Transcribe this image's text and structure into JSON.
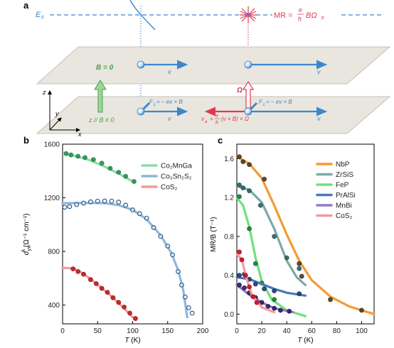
{
  "panel_a": {
    "letter": "a",
    "fermi_label": "E",
    "fermi_sub": "F",
    "mr_label": "MR =",
    "mr_frac_num": "e",
    "mr_frac_den": "ħ",
    "mr_tail": "BΩ",
    "mr_tail_sub": "F",
    "plane_top_field": "B = 0",
    "plane_bottom_field": "z // B ≠ 0",
    "velocity_label": "v",
    "omega_label": "Ω",
    "force_label": "F = − ev × B",
    "force_sub": "L",
    "va_label": "v",
    "va_sub": "a",
    "va_rest": "= (v × B) × Ω",
    "va_frac_num": "e",
    "va_frac_den": "ħ",
    "axis_z": "z",
    "axis_y": "y",
    "axis_x": "x",
    "colors": {
      "blue": "#3d86cf",
      "red": "#e03a4e",
      "green": "#4aa04a",
      "plane": "#e8e6de"
    }
  },
  "chart_data": [
    {
      "panel": "b",
      "type": "line",
      "xlabel": "T (K)",
      "ylabel": "σ",
      "ylabel_sup": "A",
      "ylabel_sub": "yx",
      "ylabel_units": "(Ω⁻¹ cm⁻¹)",
      "xlim": [
        0,
        200
      ],
      "ylim": [
        260,
        1600
      ],
      "xticks": [
        0,
        50,
        100,
        150,
        200
      ],
      "yticks": [
        400,
        800,
        1200,
        1600
      ],
      "legend_position": "top-right",
      "series": [
        {
          "name": "Co₂MnGa",
          "color": "#8edca6",
          "marker_color": "#2e8b57",
          "line": [
            [
              5,
              1525
            ],
            [
              20,
              1510
            ],
            [
              40,
              1478
            ],
            [
              60,
              1432
            ],
            [
              80,
              1380
            ],
            [
              100,
              1322
            ]
          ],
          "points": [
            [
              5,
              1530
            ],
            [
              12,
              1520
            ],
            [
              22,
              1510
            ],
            [
              32,
              1500
            ],
            [
              44,
              1485
            ],
            [
              56,
              1458
            ],
            [
              68,
              1420
            ],
            [
              80,
              1390
            ],
            [
              90,
              1360
            ],
            [
              102,
              1322
            ]
          ]
        },
        {
          "name": "Co₃Sn₂S₂",
          "color": "#8fb7db",
          "marker_color": "#2b5c8a",
          "line": [
            [
              0,
              1160
            ],
            [
              30,
              1162
            ],
            [
              60,
              1160
            ],
            [
              80,
              1145
            ],
            [
              100,
              1110
            ],
            [
              120,
              1040
            ],
            [
              140,
              920
            ],
            [
              155,
              790
            ],
            [
              165,
              660
            ],
            [
              172,
              520
            ],
            [
              178,
              310
            ]
          ],
          "points": [
            [
              3,
              1130
            ],
            [
              10,
              1135
            ],
            [
              20,
              1150
            ],
            [
              30,
              1160
            ],
            [
              40,
              1170
            ],
            [
              50,
              1175
            ],
            [
              60,
              1176
            ],
            [
              70,
              1175
            ],
            [
              80,
              1168
            ],
            [
              90,
              1145
            ],
            [
              100,
              1110
            ],
            [
              110,
              1082
            ],
            [
              120,
              1048
            ],
            [
              130,
              978
            ],
            [
              140,
              912
            ],
            [
              150,
              840
            ],
            [
              157,
              775
            ],
            [
              165,
              650
            ],
            [
              170,
              550
            ],
            [
              175,
              460
            ],
            [
              180,
              380
            ],
            [
              185,
              340
            ]
          ],
          "marker_fill": "none"
        },
        {
          "name": "CoS₂",
          "color": "#f39a9a",
          "marker_color": "#b22222",
          "line": [
            [
              0,
              678
            ],
            [
              15,
              674
            ],
            [
              25,
              650
            ],
            [
              40,
              595
            ],
            [
              55,
              530
            ],
            [
              70,
              465
            ],
            [
              85,
              390
            ],
            [
              100,
              310
            ],
            [
              105,
              290
            ]
          ],
          "points": [
            [
              15,
              670
            ],
            [
              22,
              650
            ],
            [
              30,
              630
            ],
            [
              40,
              590
            ],
            [
              48,
              560
            ],
            [
              56,
              525
            ],
            [
              64,
              495
            ],
            [
              72,
              455
            ],
            [
              80,
              420
            ],
            [
              88,
              385
            ],
            [
              96,
              340
            ],
            [
              104,
              300
            ]
          ]
        }
      ]
    },
    {
      "panel": "c",
      "type": "line",
      "xlabel": "T (K)",
      "ylabel": "MR/B (T⁻¹)",
      "xlim": [
        0,
        110
      ],
      "ylim": [
        -0.1,
        1.75
      ],
      "xticks": [
        0,
        20,
        40,
        60,
        80,
        100
      ],
      "yticks": [
        0.0,
        0.4,
        0.8,
        1.2,
        1.6
      ],
      "legend_position": "top-right",
      "series": [
        {
          "name": "NbP",
          "color": "#f59a30",
          "marker_color": "#4a3a2a",
          "line": [
            [
              0,
              1.62
            ],
            [
              10,
              1.55
            ],
            [
              20,
              1.4
            ],
            [
              30,
              1.12
            ],
            [
              40,
              0.82
            ],
            [
              50,
              0.55
            ],
            [
              60,
              0.35
            ],
            [
              75,
              0.18
            ],
            [
              90,
              0.08
            ],
            [
              110,
              0.0
            ]
          ],
          "points": [
            [
              2,
              1.62
            ],
            [
              5,
              1.57
            ],
            [
              10,
              1.54
            ],
            [
              22,
              1.39
            ],
            [
              50,
              0.52
            ],
            [
              52,
              0.39
            ],
            [
              75,
              0.15
            ],
            [
              100,
              0.04
            ]
          ]
        },
        {
          "name": "ZrSiS",
          "color": "#7aa9a9",
          "marker_color": "#2f6060",
          "line": [
            [
              0,
              1.32
            ],
            [
              10,
              1.28
            ],
            [
              20,
              1.15
            ],
            [
              30,
              0.88
            ],
            [
              40,
              0.55
            ],
            [
              48,
              0.38
            ],
            [
              55,
              0.3
            ]
          ],
          "points": [
            [
              2,
              1.33
            ],
            [
              5,
              1.3
            ],
            [
              10,
              1.27
            ],
            [
              19,
              1.12
            ],
            [
              30,
              0.8
            ],
            [
              40,
              0.58
            ],
            [
              50,
              0.47
            ]
          ]
        },
        {
          "name": "FeP",
          "color": "#6ee07f",
          "marker_color": "#1e7a32",
          "line": [
            [
              0,
              1.2
            ],
            [
              5,
              1.12
            ],
            [
              10,
              0.9
            ],
            [
              15,
              0.58
            ],
            [
              20,
              0.34
            ],
            [
              28,
              0.15
            ],
            [
              40,
              0.04
            ],
            [
              55,
              -0.02
            ]
          ],
          "points": [
            [
              2,
              1.21
            ],
            [
              10,
              0.88
            ],
            [
              15,
              0.52
            ],
            [
              20,
              0.32
            ],
            [
              30,
              0.15
            ]
          ]
        },
        {
          "name": "PrAlSi",
          "color": "#4a78b8",
          "marker_color": "#233d6a",
          "line": [
            [
              0,
              0.38
            ],
            [
              10,
              0.36
            ],
            [
              20,
              0.31
            ],
            [
              30,
              0.26
            ],
            [
              40,
              0.22
            ],
            [
              55,
              0.19
            ]
          ],
          "points": [
            [
              2,
              0.4
            ],
            [
              6,
              0.41
            ],
            [
              10,
              0.36
            ],
            [
              15,
              0.31
            ],
            [
              22,
              0.26
            ],
            [
              30,
              0.24
            ],
            [
              50,
              0.21
            ]
          ]
        },
        {
          "name": "MnBi",
          "color": "#8e7cc3",
          "marker_color": "#2e1f5e",
          "line": [
            [
              0,
              0.3
            ],
            [
              10,
              0.2
            ],
            [
              20,
              0.12
            ],
            [
              30,
              0.06
            ],
            [
              45,
              0.02
            ]
          ],
          "points": [
            [
              2,
              0.3
            ],
            [
              6,
              0.27
            ],
            [
              10,
              0.22
            ],
            [
              15,
              0.17
            ],
            [
              20,
              0.12
            ],
            [
              25,
              0.08
            ],
            [
              30,
              0.06
            ],
            [
              35,
              0.04
            ],
            [
              42,
              0.03
            ]
          ]
        },
        {
          "name": "CoS₂",
          "color": "#f39a9a",
          "marker_color": "#c0102a",
          "line": [
            [
              0,
              0.62
            ],
            [
              4,
              0.56
            ],
            [
              8,
              0.36
            ],
            [
              12,
              0.2
            ],
            [
              20,
              0.07
            ],
            [
              30,
              0.02
            ]
          ],
          "points": [
            [
              2,
              0.64
            ],
            [
              4,
              0.56
            ],
            [
              7,
              0.4
            ],
            [
              10,
              0.28
            ],
            [
              13,
              0.18
            ],
            [
              16,
              0.12
            ]
          ]
        }
      ]
    }
  ]
}
